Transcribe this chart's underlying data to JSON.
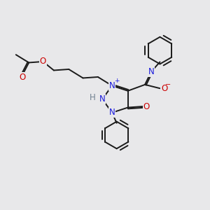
{
  "bg_color": "#e8e8ea",
  "bond_color": "#1a1a1a",
  "bond_width": 1.4,
  "dbl_sep": 0.06,
  "atom_colors": {
    "C": "#1a1a1a",
    "N": "#1a1adc",
    "O": "#cc0000",
    "H": "#708090"
  },
  "font_size": 8.5,
  "fig_w": 3.0,
  "fig_h": 3.0,
  "dpi": 100,
  "xlim": [
    0,
    10
  ],
  "ylim": [
    0,
    10
  ]
}
